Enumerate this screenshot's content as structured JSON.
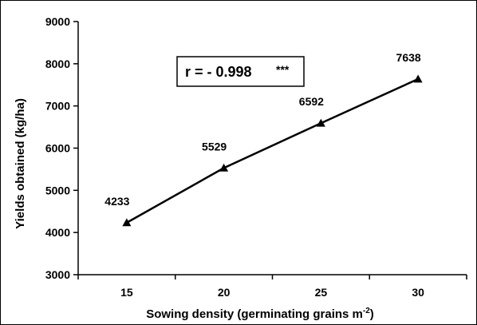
{
  "chart_data": {
    "type": "line",
    "title": "",
    "xlabel": "Sowing density (germinating grains m",
    "xlabel_superscript": "-2",
    "xlabel_suffix": ")",
    "ylabel": "Yields obtained (kg/ha)",
    "x": [
      15,
      20,
      25,
      30
    ],
    "x_tick_labels": [
      "15",
      "20",
      "25",
      "30"
    ],
    "series": [
      {
        "values": [
          4233,
          5529,
          6592,
          7638
        ],
        "data_labels": [
          "4233",
          "5529",
          "6592",
          "7638"
        ],
        "marker": "triangle",
        "color": "#000000"
      }
    ],
    "ylim": [
      3000,
      9000
    ],
    "y_ticks": [
      3000,
      4000,
      5000,
      6000,
      7000,
      8000,
      9000
    ],
    "y_tick_labels": [
      "3000",
      "4000",
      "5000",
      "6000",
      "7000",
      "8000",
      "9000"
    ],
    "grid": false,
    "legend": "none",
    "annotation": {
      "text": "r = - 0.998",
      "significance": "***"
    }
  }
}
